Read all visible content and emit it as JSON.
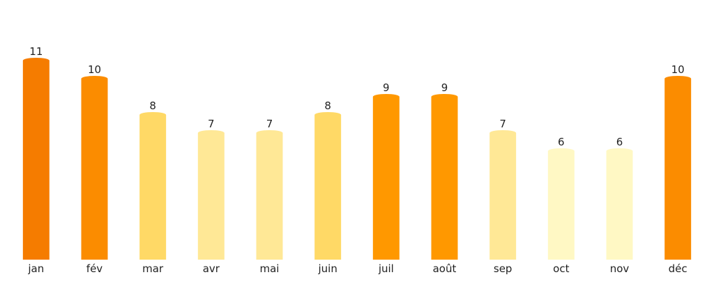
{
  "chart_data": {
    "type": "bar",
    "categories": [
      "jan",
      "fév",
      "mar",
      "avr",
      "mai",
      "juin",
      "juil",
      "août",
      "sep",
      "oct",
      "nov",
      "déc"
    ],
    "values": [
      11,
      10,
      8,
      7,
      7,
      8,
      9,
      9,
      7,
      6,
      6,
      10
    ],
    "value_labels": [
      "11",
      "10",
      "8",
      "7",
      "7",
      "8",
      "9",
      "9",
      "7",
      "6",
      "6",
      "10"
    ],
    "bar_colors": [
      "#f57c00",
      "#fb8c00",
      "#ffd966",
      "#ffe896",
      "#ffe896",
      "#ffd966",
      "#ff9800",
      "#ff9800",
      "#ffe896",
      "#fff8c4",
      "#fff8c4",
      "#fb8c00"
    ],
    "ylim": [
      0,
      13
    ],
    "grid": false,
    "legend": "none"
  }
}
